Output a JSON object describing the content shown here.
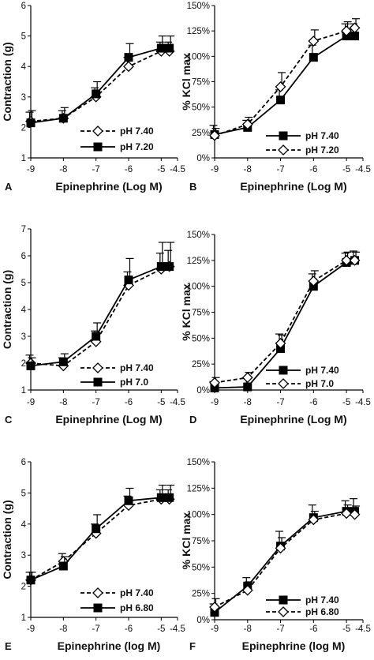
{
  "chart_data": [
    {
      "panel": "A",
      "type": "line",
      "xlabel": "Epinephrine (Log M)",
      "ylabel": "Contraction (g)",
      "xlim": [
        -9,
        -4.5
      ],
      "ylim": [
        1,
        6
      ],
      "xticks": [
        "-9",
        "-8",
        "-7",
        "-6",
        "-5",
        "-4.5"
      ],
      "yticks": [
        "1",
        "2",
        "3",
        "4",
        "5",
        "6"
      ],
      "legend_position": "bottom-right",
      "series": [
        {
          "name": "pH 7.40",
          "marker": "open-diamond",
          "line": "dashed",
          "x": [
            -9,
            -8,
            -7,
            -6,
            -5,
            -4.75
          ],
          "y": [
            2.2,
            2.3,
            3.0,
            4.0,
            4.5,
            4.5
          ],
          "err": [
            0.3,
            0.25,
            0.3,
            0.3,
            0.3,
            0.3
          ]
        },
        {
          "name": "pH 7.20",
          "marker": "filled-square",
          "line": "solid",
          "x": [
            -9,
            -8,
            -7,
            -6,
            -5,
            -4.75
          ],
          "y": [
            2.15,
            2.3,
            3.1,
            4.3,
            4.6,
            4.6
          ],
          "err": [
            0.4,
            0.35,
            0.4,
            0.45,
            0.4,
            0.4
          ]
        }
      ]
    },
    {
      "panel": "B",
      "type": "line",
      "xlabel": "Epinephrine (Log M)",
      "ylabel": "% KCl max",
      "xlim": [
        -9,
        -4.5
      ],
      "ylim": [
        0,
        150
      ],
      "xticks": [
        "-9",
        "-8",
        "-7",
        "-6",
        "-5",
        "-4.5"
      ],
      "yticks": [
        "0%",
        "25%",
        "50%",
        "75%",
        "100%",
        "125%",
        "150%"
      ],
      "legend_position": "bottom-right",
      "series": [
        {
          "name": "pH 7.40",
          "marker": "filled-square",
          "line": "solid",
          "x": [
            -9,
            -8,
            -7,
            -6,
            -5,
            -4.75
          ],
          "y": [
            23,
            30,
            57,
            99,
            120,
            120
          ],
          "err": [
            9,
            7,
            10,
            12,
            12,
            12
          ]
        },
        {
          "name": "pH 7.20",
          "marker": "open-diamond",
          "line": "dashed",
          "x": [
            -9,
            -8,
            -7,
            -6,
            -5,
            -4.75
          ],
          "y": [
            22,
            33,
            70,
            115,
            125,
            128
          ],
          "err": [
            7,
            7,
            14,
            11,
            9,
            9
          ]
        }
      ]
    },
    {
      "panel": "C",
      "type": "line",
      "xlabel": "Epinephrine (Log M)",
      "ylabel": "Contraction (g)",
      "xlim": [
        -9,
        -4.5
      ],
      "ylim": [
        1,
        7
      ],
      "xticks": [
        "-9",
        "-8",
        "-7",
        "-6",
        "-5",
        "-4.5"
      ],
      "yticks": [
        "1",
        "2",
        "3",
        "4",
        "5",
        "6",
        "7"
      ],
      "legend_position": "bottom-right",
      "series": [
        {
          "name": "pH 7.40",
          "marker": "open-diamond",
          "line": "dashed",
          "x": [
            -9,
            -8,
            -7,
            -6,
            -5,
            -4.75
          ],
          "y": [
            2.0,
            1.9,
            2.8,
            4.9,
            5.5,
            5.6
          ],
          "err": [
            0.3,
            0.3,
            0.4,
            0.5,
            0.6,
            0.6
          ]
        },
        {
          "name": "pH 7.0",
          "marker": "filled-square",
          "line": "solid",
          "x": [
            -9,
            -8,
            -7,
            -6,
            -5,
            -4.75
          ],
          "y": [
            1.9,
            2.05,
            3.0,
            5.1,
            5.6,
            5.6
          ],
          "err": [
            0.3,
            0.3,
            0.5,
            0.8,
            0.9,
            0.9
          ]
        }
      ]
    },
    {
      "panel": "D",
      "type": "line",
      "xlabel": "Epinephrine (Log M)",
      "ylabel": "% KCl max",
      "xlim": [
        -9,
        -4.5
      ],
      "ylim": [
        0,
        150
      ],
      "xticks": [
        "-9",
        "-8",
        "-7",
        "-6",
        "-5",
        "-4.5"
      ],
      "yticks": [
        "0%",
        "25%",
        "50%",
        "75%",
        "100%",
        "125%",
        "150%"
      ],
      "legend_position": "bottom-right",
      "series": [
        {
          "name": "pH 7.40",
          "marker": "filled-square",
          "line": "solid",
          "x": [
            -9,
            -8,
            -7,
            -6,
            -5,
            -4.75
          ],
          "y": [
            2,
            3,
            40,
            100,
            123,
            125
          ],
          "err": [
            6,
            8,
            14,
            12,
            9,
            9
          ]
        },
        {
          "name": "pH 7.0",
          "marker": "open-diamond",
          "line": "dashed",
          "x": [
            -9,
            -8,
            -7,
            -6,
            -5,
            -4.75
          ],
          "y": [
            7,
            12,
            45,
            105,
            125,
            125
          ],
          "err": [
            5,
            5,
            8,
            10,
            8,
            8
          ]
        }
      ]
    },
    {
      "panel": "E",
      "type": "line",
      "xlabel": "Epinephrine (log M)",
      "ylabel": "Contraction (g)",
      "xlim": [
        -9,
        -4.5
      ],
      "ylim": [
        1,
        6
      ],
      "xticks": [
        "-9",
        "-8",
        "-7",
        "-6",
        "-5",
        "-4.5"
      ],
      "yticks": [
        "1",
        "2",
        "3",
        "4",
        "5",
        "6"
      ],
      "legend_position": "bottom-right",
      "series": [
        {
          "name": "pH 7.40",
          "marker": "open-diamond",
          "line": "dashed",
          "x": [
            -9,
            -8,
            -7,
            -6,
            -5,
            -4.75
          ],
          "y": [
            2.2,
            2.8,
            3.7,
            4.6,
            4.8,
            4.8
          ],
          "err": [
            0.25,
            0.25,
            0.3,
            0.3,
            0.3,
            0.3
          ]
        },
        {
          "name": "pH 6.80",
          "marker": "filled-square",
          "line": "solid",
          "x": [
            -9,
            -8,
            -7,
            -6,
            -5,
            -4.75
          ],
          "y": [
            2.2,
            2.65,
            3.85,
            4.75,
            4.85,
            4.85
          ],
          "err": [
            0.25,
            0.3,
            0.45,
            0.4,
            0.4,
            0.4
          ]
        }
      ]
    },
    {
      "panel": "F",
      "type": "line",
      "xlabel": "Epinephrine (log M)",
      "ylabel": "% KCl max",
      "xlim": [
        -9,
        -4.5
      ],
      "ylim": [
        0,
        150
      ],
      "xticks": [
        "-9",
        "-8",
        "-7",
        "-6",
        "-5",
        "-4.5"
      ],
      "yticks": [
        "0%",
        "25%",
        "50%",
        "75%",
        "100%",
        "125%",
        "150%"
      ],
      "legend_position": "bottom-right",
      "series": [
        {
          "name": "pH 7.40",
          "marker": "filled-square",
          "line": "solid",
          "x": [
            -9,
            -8,
            -7,
            -6,
            -5,
            -4.75
          ],
          "y": [
            7,
            32,
            70,
            97,
            103,
            103
          ],
          "err": [
            8,
            8,
            14,
            12,
            10,
            12
          ]
        },
        {
          "name": "pH 6.80",
          "marker": "open-diamond",
          "line": "dashed",
          "x": [
            -9,
            -8,
            -7,
            -6,
            -5,
            -4.75
          ],
          "y": [
            12,
            28,
            68,
            95,
            101,
            100
          ],
          "err": [
            8,
            8,
            10,
            8,
            8,
            8
          ]
        }
      ]
    }
  ]
}
